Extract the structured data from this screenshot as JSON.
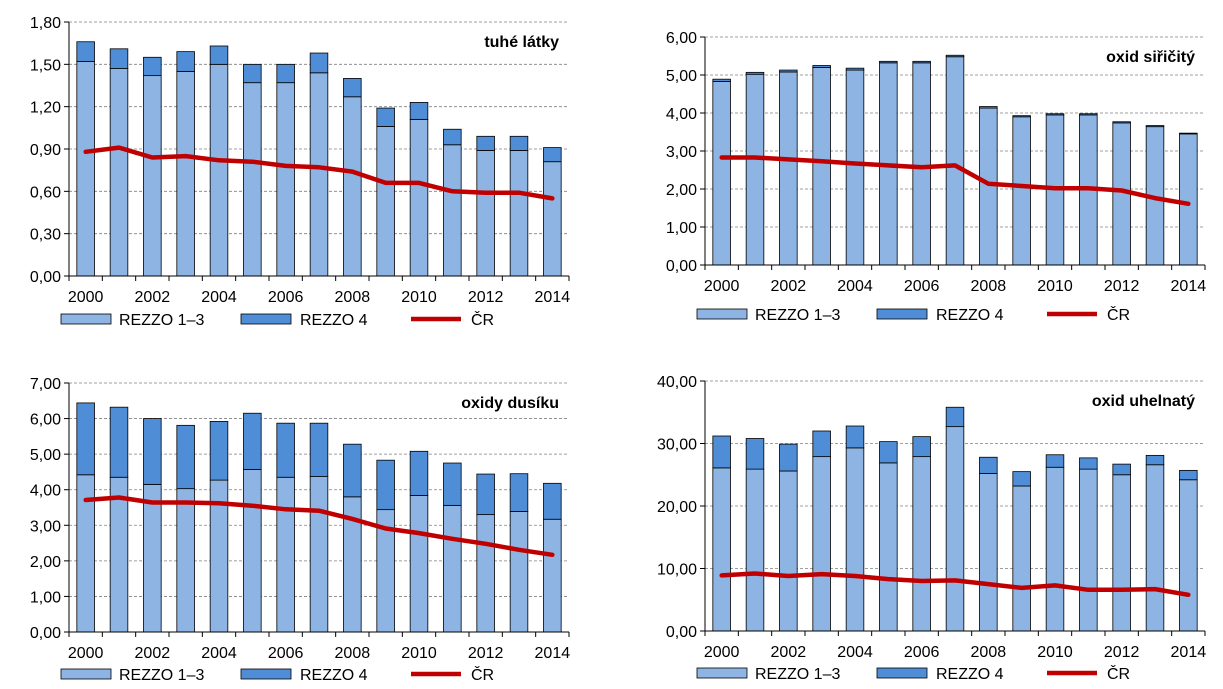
{
  "colors": {
    "rezzo13": "#8DB4E2",
    "rezzo4": "#4F8ED6",
    "cr": "#C00000",
    "grid": "#808080",
    "axis": "#000000",
    "bar_edge": "#000000"
  },
  "legend": {
    "rezzo13": "REZZO 1–3",
    "rezzo4": "REZZO 4",
    "cr": "ČR"
  },
  "chart_data": [
    {
      "type": "bar",
      "stacked": true,
      "title": "tuhé látky",
      "legend_position": "bottom",
      "grid": "horizontal-dashed",
      "x": [
        2000,
        2001,
        2002,
        2003,
        2004,
        2005,
        2006,
        2007,
        2008,
        2009,
        2010,
        2011,
        2012,
        2013,
        2014
      ],
      "xtick_labels": [
        "2000",
        "2002",
        "2004",
        "2006",
        "2008",
        "2010",
        "2012",
        "2014"
      ],
      "ylim": [
        0,
        1.8
      ],
      "yticks": [
        "0,00",
        "0,30",
        "0,60",
        "0,90",
        "1,20",
        "1,50",
        "1,80"
      ],
      "series": [
        {
          "name": "REZZO 1–3",
          "kind": "bar",
          "values": [
            1.52,
            1.47,
            1.42,
            1.45,
            1.5,
            1.37,
            1.37,
            1.44,
            1.27,
            1.06,
            1.11,
            0.93,
            0.89,
            0.89,
            0.81
          ]
        },
        {
          "name": "REZZO 4",
          "kind": "bar",
          "values": [
            0.14,
            0.14,
            0.13,
            0.14,
            0.13,
            0.13,
            0.13,
            0.14,
            0.13,
            0.13,
            0.12,
            0.11,
            0.1,
            0.1,
            0.1
          ]
        },
        {
          "name": "ČR",
          "kind": "line",
          "values": [
            0.88,
            0.91,
            0.84,
            0.85,
            0.82,
            0.81,
            0.78,
            0.77,
            0.74,
            0.66,
            0.66,
            0.6,
            0.59,
            0.59,
            0.55
          ]
        }
      ]
    },
    {
      "type": "bar",
      "stacked": true,
      "title": "oxid siřičitý",
      "legend_position": "bottom",
      "grid": "horizontal-dashed",
      "x": [
        2000,
        2001,
        2002,
        2003,
        2004,
        2005,
        2006,
        2007,
        2008,
        2009,
        2010,
        2011,
        2012,
        2013,
        2014
      ],
      "xtick_labels": [
        "2000",
        "2002",
        "2004",
        "2006",
        "2008",
        "2010",
        "2012",
        "2014"
      ],
      "ylim": [
        0,
        6
      ],
      "yticks": [
        "0,00",
        "1,00",
        "2,00",
        "3,00",
        "4,00",
        "5,00",
        "6,00"
      ],
      "series": [
        {
          "name": "REZZO 1–3",
          "kind": "bar",
          "values": [
            4.83,
            5.02,
            5.08,
            5.2,
            5.13,
            5.32,
            5.32,
            5.48,
            4.13,
            3.9,
            3.95,
            3.95,
            3.74,
            3.64,
            3.45
          ]
        },
        {
          "name": "REZZO 4",
          "kind": "bar",
          "values": [
            0.06,
            0.05,
            0.05,
            0.05,
            0.05,
            0.04,
            0.04,
            0.04,
            0.04,
            0.03,
            0.03,
            0.03,
            0.03,
            0.03,
            0.02
          ]
        },
        {
          "name": "ČR",
          "kind": "line",
          "values": [
            2.83,
            2.83,
            2.78,
            2.73,
            2.67,
            2.62,
            2.57,
            2.62,
            2.14,
            2.08,
            2.02,
            2.02,
            1.96,
            1.76,
            1.61
          ]
        }
      ]
    },
    {
      "type": "bar",
      "stacked": true,
      "title": "oxidy dusíku",
      "legend_position": "bottom",
      "grid": "horizontal-dashed",
      "x": [
        2000,
        2001,
        2002,
        2003,
        2004,
        2005,
        2006,
        2007,
        2008,
        2009,
        2010,
        2011,
        2012,
        2013,
        2014
      ],
      "xtick_labels": [
        "2000",
        "2002",
        "2004",
        "2006",
        "2008",
        "2010",
        "2012",
        "2014"
      ],
      "ylim": [
        0,
        7
      ],
      "yticks": [
        "0,00",
        "1,00",
        "2,00",
        "3,00",
        "4,00",
        "5,00",
        "6,00",
        "7,00"
      ],
      "series": [
        {
          "name": "REZZO 1–3",
          "kind": "bar",
          "values": [
            4.42,
            4.35,
            4.15,
            4.03,
            4.27,
            4.57,
            4.35,
            4.37,
            3.8,
            3.44,
            3.84,
            3.56,
            3.3,
            3.39,
            3.17
          ]
        },
        {
          "name": "REZZO 4",
          "kind": "bar",
          "values": [
            2.02,
            1.97,
            1.85,
            1.78,
            1.65,
            1.58,
            1.52,
            1.5,
            1.48,
            1.39,
            1.24,
            1.19,
            1.14,
            1.06,
            1.01
          ]
        },
        {
          "name": "ČR",
          "kind": "line",
          "values": [
            3.71,
            3.78,
            3.64,
            3.64,
            3.62,
            3.55,
            3.45,
            3.41,
            3.18,
            2.91,
            2.78,
            2.62,
            2.48,
            2.31,
            2.17
          ]
        }
      ]
    },
    {
      "type": "bar",
      "stacked": true,
      "title": "oxid uhelnatý",
      "legend_position": "bottom",
      "grid": "horizontal-dashed",
      "x": [
        2000,
        2001,
        2002,
        2003,
        2004,
        2005,
        2006,
        2007,
        2008,
        2009,
        2010,
        2011,
        2012,
        2013,
        2014
      ],
      "xtick_labels": [
        "2000",
        "2002",
        "2004",
        "2006",
        "2008",
        "2010",
        "2012",
        "2014"
      ],
      "ylim": [
        0,
        40
      ],
      "yticks": [
        "0,00",
        "10,00",
        "20,00",
        "30,00",
        "40,00"
      ],
      "series": [
        {
          "name": "REZZO 1–3",
          "kind": "bar",
          "values": [
            26.1,
            25.9,
            25.6,
            27.9,
            29.3,
            26.9,
            27.9,
            32.7,
            25.2,
            23.2,
            26.2,
            25.9,
            25.0,
            26.6,
            24.2
          ]
        },
        {
          "name": "REZZO 4",
          "kind": "bar",
          "values": [
            5.1,
            4.9,
            4.3,
            4.1,
            3.5,
            3.4,
            3.2,
            3.1,
            2.6,
            2.3,
            2.0,
            1.8,
            1.7,
            1.5,
            1.5
          ]
        },
        {
          "name": "ČR",
          "kind": "line",
          "values": [
            8.9,
            9.2,
            8.8,
            9.1,
            8.8,
            8.3,
            8.0,
            8.1,
            7.5,
            6.9,
            7.3,
            6.6,
            6.6,
            6.7,
            5.8
          ]
        }
      ]
    }
  ]
}
